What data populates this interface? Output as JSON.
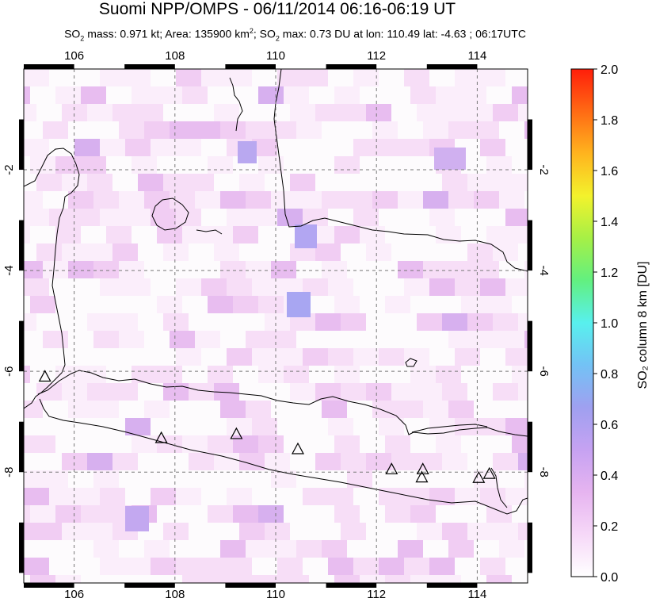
{
  "header": {
    "title": "Suomi NPP/OMPS - 06/11/2014 06:16-06:19 UT",
    "stats": {
      "mass_label": "SO",
      "mass_sub": "2",
      "mass_text": " mass: 0.971 kt; Area: 135900 km",
      "area_sup": "2",
      "max_label": "; SO",
      "max_sub": "2",
      "max_text": " max: 0.73 DU at lon: 110.49 lat: -4.63 ; 06:17UTC"
    }
  },
  "map": {
    "lon_ticks": [
      "106",
      "108",
      "110",
      "112",
      "114"
    ],
    "lat_ticks": [
      "-2",
      "-4",
      "-6",
      "-8"
    ],
    "lon_range": [
      105,
      115
    ],
    "lat_range": [
      -10.2,
      0.0
    ],
    "volcano_marker": "triangle-icon",
    "volcanoes": [
      {
        "lon": 105.42,
        "lat": -6.1
      },
      {
        "lon": 107.73,
        "lat": -7.32
      },
      {
        "lon": 109.22,
        "lat": -7.24
      },
      {
        "lon": 110.44,
        "lat": -7.54
      },
      {
        "lon": 112.3,
        "lat": -7.94
      },
      {
        "lon": 112.92,
        "lat": -7.94
      },
      {
        "lon": 112.9,
        "lat": -8.1
      },
      {
        "lon": 114.03,
        "lat": -8.11
      },
      {
        "lon": 114.24,
        "lat": -8.03
      }
    ]
  },
  "colorbar": {
    "label": "SO₂ column 8 km [DU]",
    "ticks": [
      "0.0",
      "0.2",
      "0.4",
      "0.6",
      "0.8",
      "1.0",
      "1.2",
      "1.4",
      "1.6",
      "1.8",
      "2.0"
    ],
    "range": [
      0.0,
      2.0
    ],
    "colors": [
      "#ffffff",
      "#f6d8f8",
      "#e6b4f0",
      "#c6a2f2",
      "#9fa0f0",
      "#73c2f5",
      "#58f0ee",
      "#62f080",
      "#a6f046",
      "#f3f22c",
      "#ffb41e",
      "#ff6a14",
      "#ff1e0a"
    ]
  }
}
